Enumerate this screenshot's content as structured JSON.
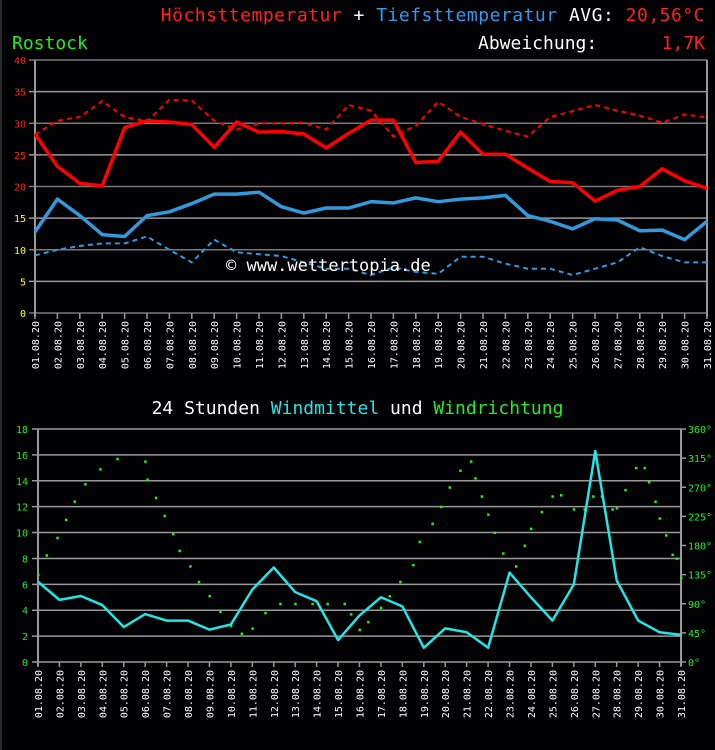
{
  "header": {
    "max_label": "Höchsttemperatur",
    "plus": "+",
    "min_label": "Tiefsttemperatur",
    "avg_label": "AVG:",
    "avg_value": "20,56°C",
    "location": "Rostock",
    "deviation_label": "Abweichung:",
    "deviation_value": "1,7K",
    "watermark": "© www.wettertopia.de"
  },
  "wind_header": {
    "prefix": "24 Stunden",
    "windmittel": "Windmittel",
    "und": "und",
    "windrichtung": "Windrichtung"
  },
  "colors": {
    "max": "#ff0000",
    "min": "#3399dd",
    "green": "#00ff00",
    "wind": "#22e6e6",
    "grid": "#888888",
    "yellow": "#ffff00"
  },
  "chart_data": [
    {
      "type": "line",
      "title": "Höchsttemperatur + Tiefsttemperatur",
      "location": "Rostock",
      "ylim": [
        0,
        40
      ],
      "y_ticks": [
        0,
        5,
        10,
        15,
        20,
        25,
        30,
        35,
        40
      ],
      "grid": true,
      "categories": [
        "01.08.20",
        "02.08.20",
        "03.08.20",
        "04.08.20",
        "05.08.20",
        "06.08.20",
        "07.08.20",
        "08.08.20",
        "09.08.20",
        "10.08.20",
        "11.08.20",
        "12.08.20",
        "13.08.20",
        "14.08.20",
        "15.08.20",
        "16.08.20",
        "17.08.20",
        "18.08.20",
        "19.08.20",
        "20.08.20",
        "21.08.20",
        "22.08.20",
        "23.08.20",
        "24.08.20",
        "25.08.20",
        "26.08.20",
        "27.08.20",
        "28.08.20",
        "29.08.20",
        "30.08.20",
        "31.08.20"
      ],
      "series": [
        {
          "name": "Höchsttemperatur",
          "style": "solid",
          "color": "#ff0000",
          "values": [
            28.3,
            23.2,
            20.5,
            20.1,
            29.3,
            30.4,
            30.2,
            29.8,
            26.2,
            30.2,
            28.6,
            28.7,
            28.3,
            26.1,
            28.4,
            30.5,
            30.5,
            23.8,
            24.0,
            28.6,
            25.1,
            25.1,
            22.9,
            20.8,
            20.6,
            17.7,
            19.4,
            20.0,
            22.8,
            20.9,
            19.7
          ]
        },
        {
          "name": "Höchsttemperatur (Vergleich)",
          "style": "dashed",
          "color": "#ff0000",
          "values": [
            28.2,
            30.4,
            31.0,
            33.5,
            31.0,
            30.3,
            33.7,
            33.6,
            30.4,
            29.0,
            30.0,
            30.0,
            30.1,
            29.0,
            32.9,
            32.0,
            27.9,
            29.6,
            33.4,
            31.0,
            29.9,
            28.8,
            27.9,
            31.0,
            31.9,
            32.9,
            32.0,
            31.2,
            30.1,
            31.4,
            30.9
          ]
        },
        {
          "name": "Tiefsttemperatur",
          "style": "solid",
          "color": "#3399dd",
          "values": [
            12.8,
            18.0,
            15.4,
            12.4,
            12.1,
            15.4,
            16.0,
            17.3,
            18.8,
            18.8,
            19.1,
            16.8,
            15.8,
            16.6,
            16.6,
            17.6,
            17.4,
            18.2,
            17.6,
            18.0,
            18.2,
            18.6,
            15.4,
            14.5,
            13.3,
            14.9,
            14.7,
            13.0,
            13.1,
            11.6,
            14.5
          ]
        },
        {
          "name": "Tiefsttemperatur (Vergleich)",
          "style": "dashed",
          "color": "#3399dd",
          "values": [
            9.1,
            10.0,
            10.6,
            11.0,
            11.0,
            12.1,
            10.0,
            8.0,
            11.6,
            9.6,
            9.3,
            9.0,
            8.0,
            7.0,
            7.0,
            6.0,
            7.2,
            6.5,
            6.2,
            8.9,
            8.9,
            7.8,
            7.0,
            7.0,
            6.0,
            7.0,
            8.0,
            10.4,
            9.0,
            8.0,
            8.0
          ]
        }
      ],
      "annotations": [
        "AVG: 20,56°C",
        "Abweichung: 1,7K",
        "© www.wettertopia.de"
      ]
    },
    {
      "type": "line",
      "title": "24 Stunden Windmittel und Windrichtung",
      "ylim": [
        0,
        18
      ],
      "y_ticks": [
        0,
        2,
        4,
        6,
        8,
        10,
        12,
        14,
        16,
        18
      ],
      "y2lim": [
        0,
        360
      ],
      "y2_ticks": [
        "0°",
        "45°",
        "90°",
        "135°",
        "180°",
        "225°",
        "270°",
        "315°",
        "360°"
      ],
      "grid": true,
      "categories": [
        "01.08.20",
        "02.08.20",
        "03.08.20",
        "04.08.20",
        "05.08.20",
        "06.08.20",
        "07.08.20",
        "08.08.20",
        "09.08.20",
        "10.08.20",
        "11.08.20",
        "12.08.20",
        "13.08.20",
        "14.08.20",
        "15.08.20",
        "16.08.20",
        "17.08.20",
        "18.08.20",
        "19.08.20",
        "20.08.20",
        "21.08.20",
        "22.08.20",
        "23.08.20",
        "24.08.20",
        "25.08.20",
        "26.08.20",
        "27.08.20",
        "28.08.20",
        "29.08.20",
        "30.08.20",
        "31.08.20"
      ],
      "series": [
        {
          "name": "Windmittel",
          "style": "solid",
          "color": "#22e6e6",
          "axis": "left",
          "values": [
            6.2,
            4.8,
            5.1,
            4.4,
            2.7,
            3.7,
            3.2,
            3.2,
            2.5,
            2.9,
            5.6,
            7.3,
            5.4,
            4.7,
            1.7,
            3.6,
            5.0,
            4.3,
            1.1,
            2.6,
            2.3,
            1.1,
            6.9,
            5.0,
            3.2,
            6.0,
            16.3,
            6.3,
            3.2,
            2.3,
            2.1
          ]
        },
        {
          "name": "Windrichtung",
          "style": "dots",
          "color": "#00ff00",
          "axis": "right",
          "points": [
            [
              1.0,
              135
            ],
            [
              1.4,
              165
            ],
            [
              1.9,
              192
            ],
            [
              2.3,
              220
            ],
            [
              2.7,
              248
            ],
            [
              3.2,
              275
            ],
            [
              3.9,
              298
            ],
            [
              4.7,
              314
            ],
            [
              6.0,
              310
            ],
            [
              6.1,
              282
            ],
            [
              6.5,
              254
            ],
            [
              6.9,
              226
            ],
            [
              7.3,
              198
            ],
            [
              7.6,
              172
            ],
            [
              8.1,
              148
            ],
            [
              8.5,
              124
            ],
            [
              9.0,
              102
            ],
            [
              9.5,
              78
            ],
            [
              10.0,
              56
            ],
            [
              10.5,
              44
            ],
            [
              11.0,
              52
            ],
            [
              11.6,
              76
            ],
            [
              12.3,
              90
            ],
            [
              13.0,
              90
            ],
            [
              13.8,
              90
            ],
            [
              14.5,
              90
            ],
            [
              15.3,
              90
            ],
            [
              15.6,
              74
            ],
            [
              16.0,
              50
            ],
            [
              16.4,
              62
            ],
            [
              17.0,
              84
            ],
            [
              17.4,
              102
            ],
            [
              17.9,
              124
            ],
            [
              18.5,
              150
            ],
            [
              18.8,
              186
            ],
            [
              19.4,
              214
            ],
            [
              19.8,
              240
            ],
            [
              20.2,
              270
            ],
            [
              20.7,
              296
            ],
            [
              21.2,
              310
            ],
            [
              21.4,
              284
            ],
            [
              21.7,
              256
            ],
            [
              22.0,
              228
            ],
            [
              22.3,
              200
            ],
            [
              22.7,
              168
            ],
            [
              23.0,
              138
            ],
            [
              23.3,
              148
            ],
            [
              23.7,
              180
            ],
            [
              24.0,
              206
            ],
            [
              24.5,
              232
            ],
            [
              25.0,
              256
            ],
            [
              25.4,
              258
            ],
            [
              26.0,
              236
            ],
            [
              26.5,
              236
            ],
            [
              26.9,
              256
            ],
            [
              27.3,
              256
            ],
            [
              27.8,
              236
            ],
            [
              28.0,
              238
            ],
            [
              28.4,
              266
            ],
            [
              28.9,
              300
            ],
            [
              29.3,
              300
            ],
            [
              29.5,
              278
            ],
            [
              29.8,
              248
            ],
            [
              30.0,
              222
            ],
            [
              30.3,
              196
            ],
            [
              30.6,
              166
            ],
            [
              30.8,
              160
            ],
            [
              31.0,
              130
            ]
          ]
        }
      ]
    }
  ]
}
